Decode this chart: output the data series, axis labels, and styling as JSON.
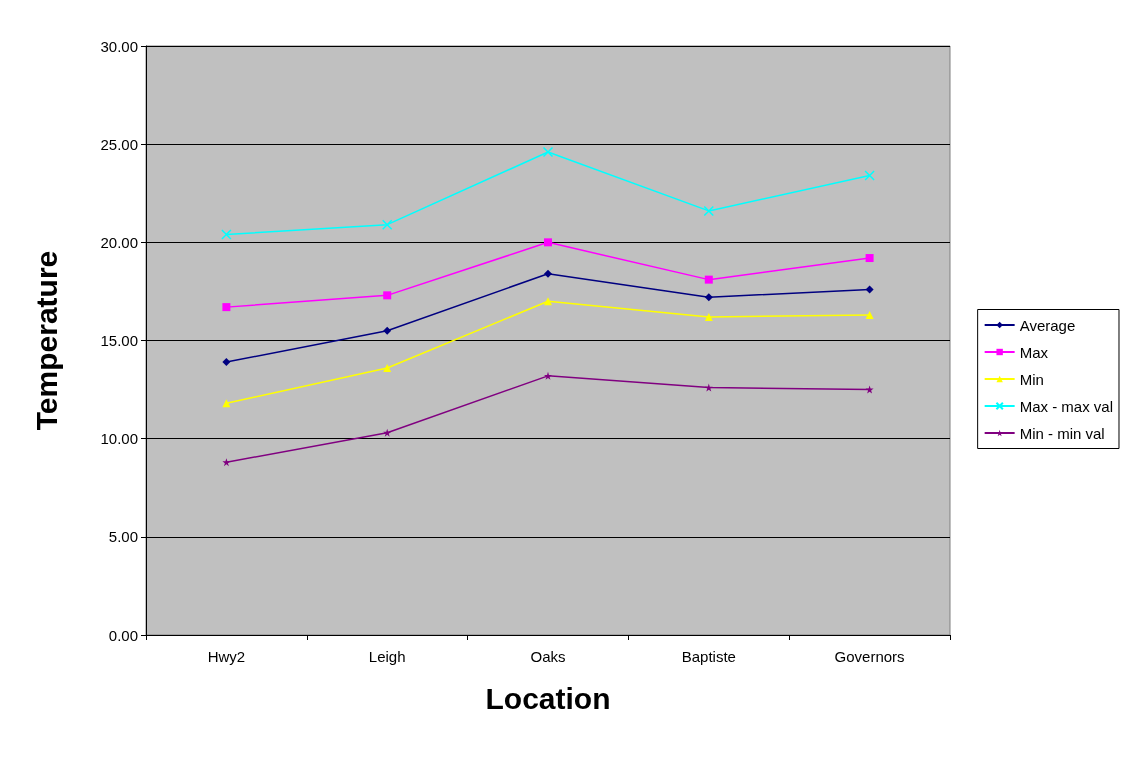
{
  "chart_data": {
    "type": "line",
    "xlabel": "Location",
    "ylabel": "Temperature",
    "categories": [
      "Hwy2",
      "Leigh",
      "Oaks",
      "Baptiste",
      "Governors"
    ],
    "series": [
      {
        "name": "Average",
        "color": "#000080",
        "marker": "diamond",
        "values": [
          13.9,
          15.5,
          18.4,
          17.2,
          17.6
        ]
      },
      {
        "name": "Max",
        "color": "#ff00ff",
        "marker": "square",
        "values": [
          16.7,
          17.3,
          20.0,
          18.1,
          19.2
        ]
      },
      {
        "name": "Min",
        "color": "#ffff00",
        "marker": "triangle",
        "values": [
          11.8,
          13.6,
          17.0,
          16.2,
          16.3
        ]
      },
      {
        "name": "Max - max val",
        "color": "#00ffff",
        "marker": "cross",
        "values": [
          20.4,
          20.9,
          24.6,
          21.6,
          23.4
        ]
      },
      {
        "name": "Min - min val",
        "color": "#800080",
        "marker": "star",
        "values": [
          8.8,
          10.3,
          13.2,
          12.6,
          12.5
        ]
      }
    ],
    "ylim": [
      0,
      30
    ],
    "yticks": [
      {
        "value": 0,
        "label": "0.00"
      },
      {
        "value": 5,
        "label": "5.00"
      },
      {
        "value": 10,
        "label": "10.00"
      },
      {
        "value": 15,
        "label": "15.00"
      },
      {
        "value": 20,
        "label": "20.00"
      },
      {
        "value": 25,
        "label": "25.00"
      },
      {
        "value": 30,
        "label": "30.00"
      }
    ],
    "grid": "y",
    "legend": "right"
  }
}
